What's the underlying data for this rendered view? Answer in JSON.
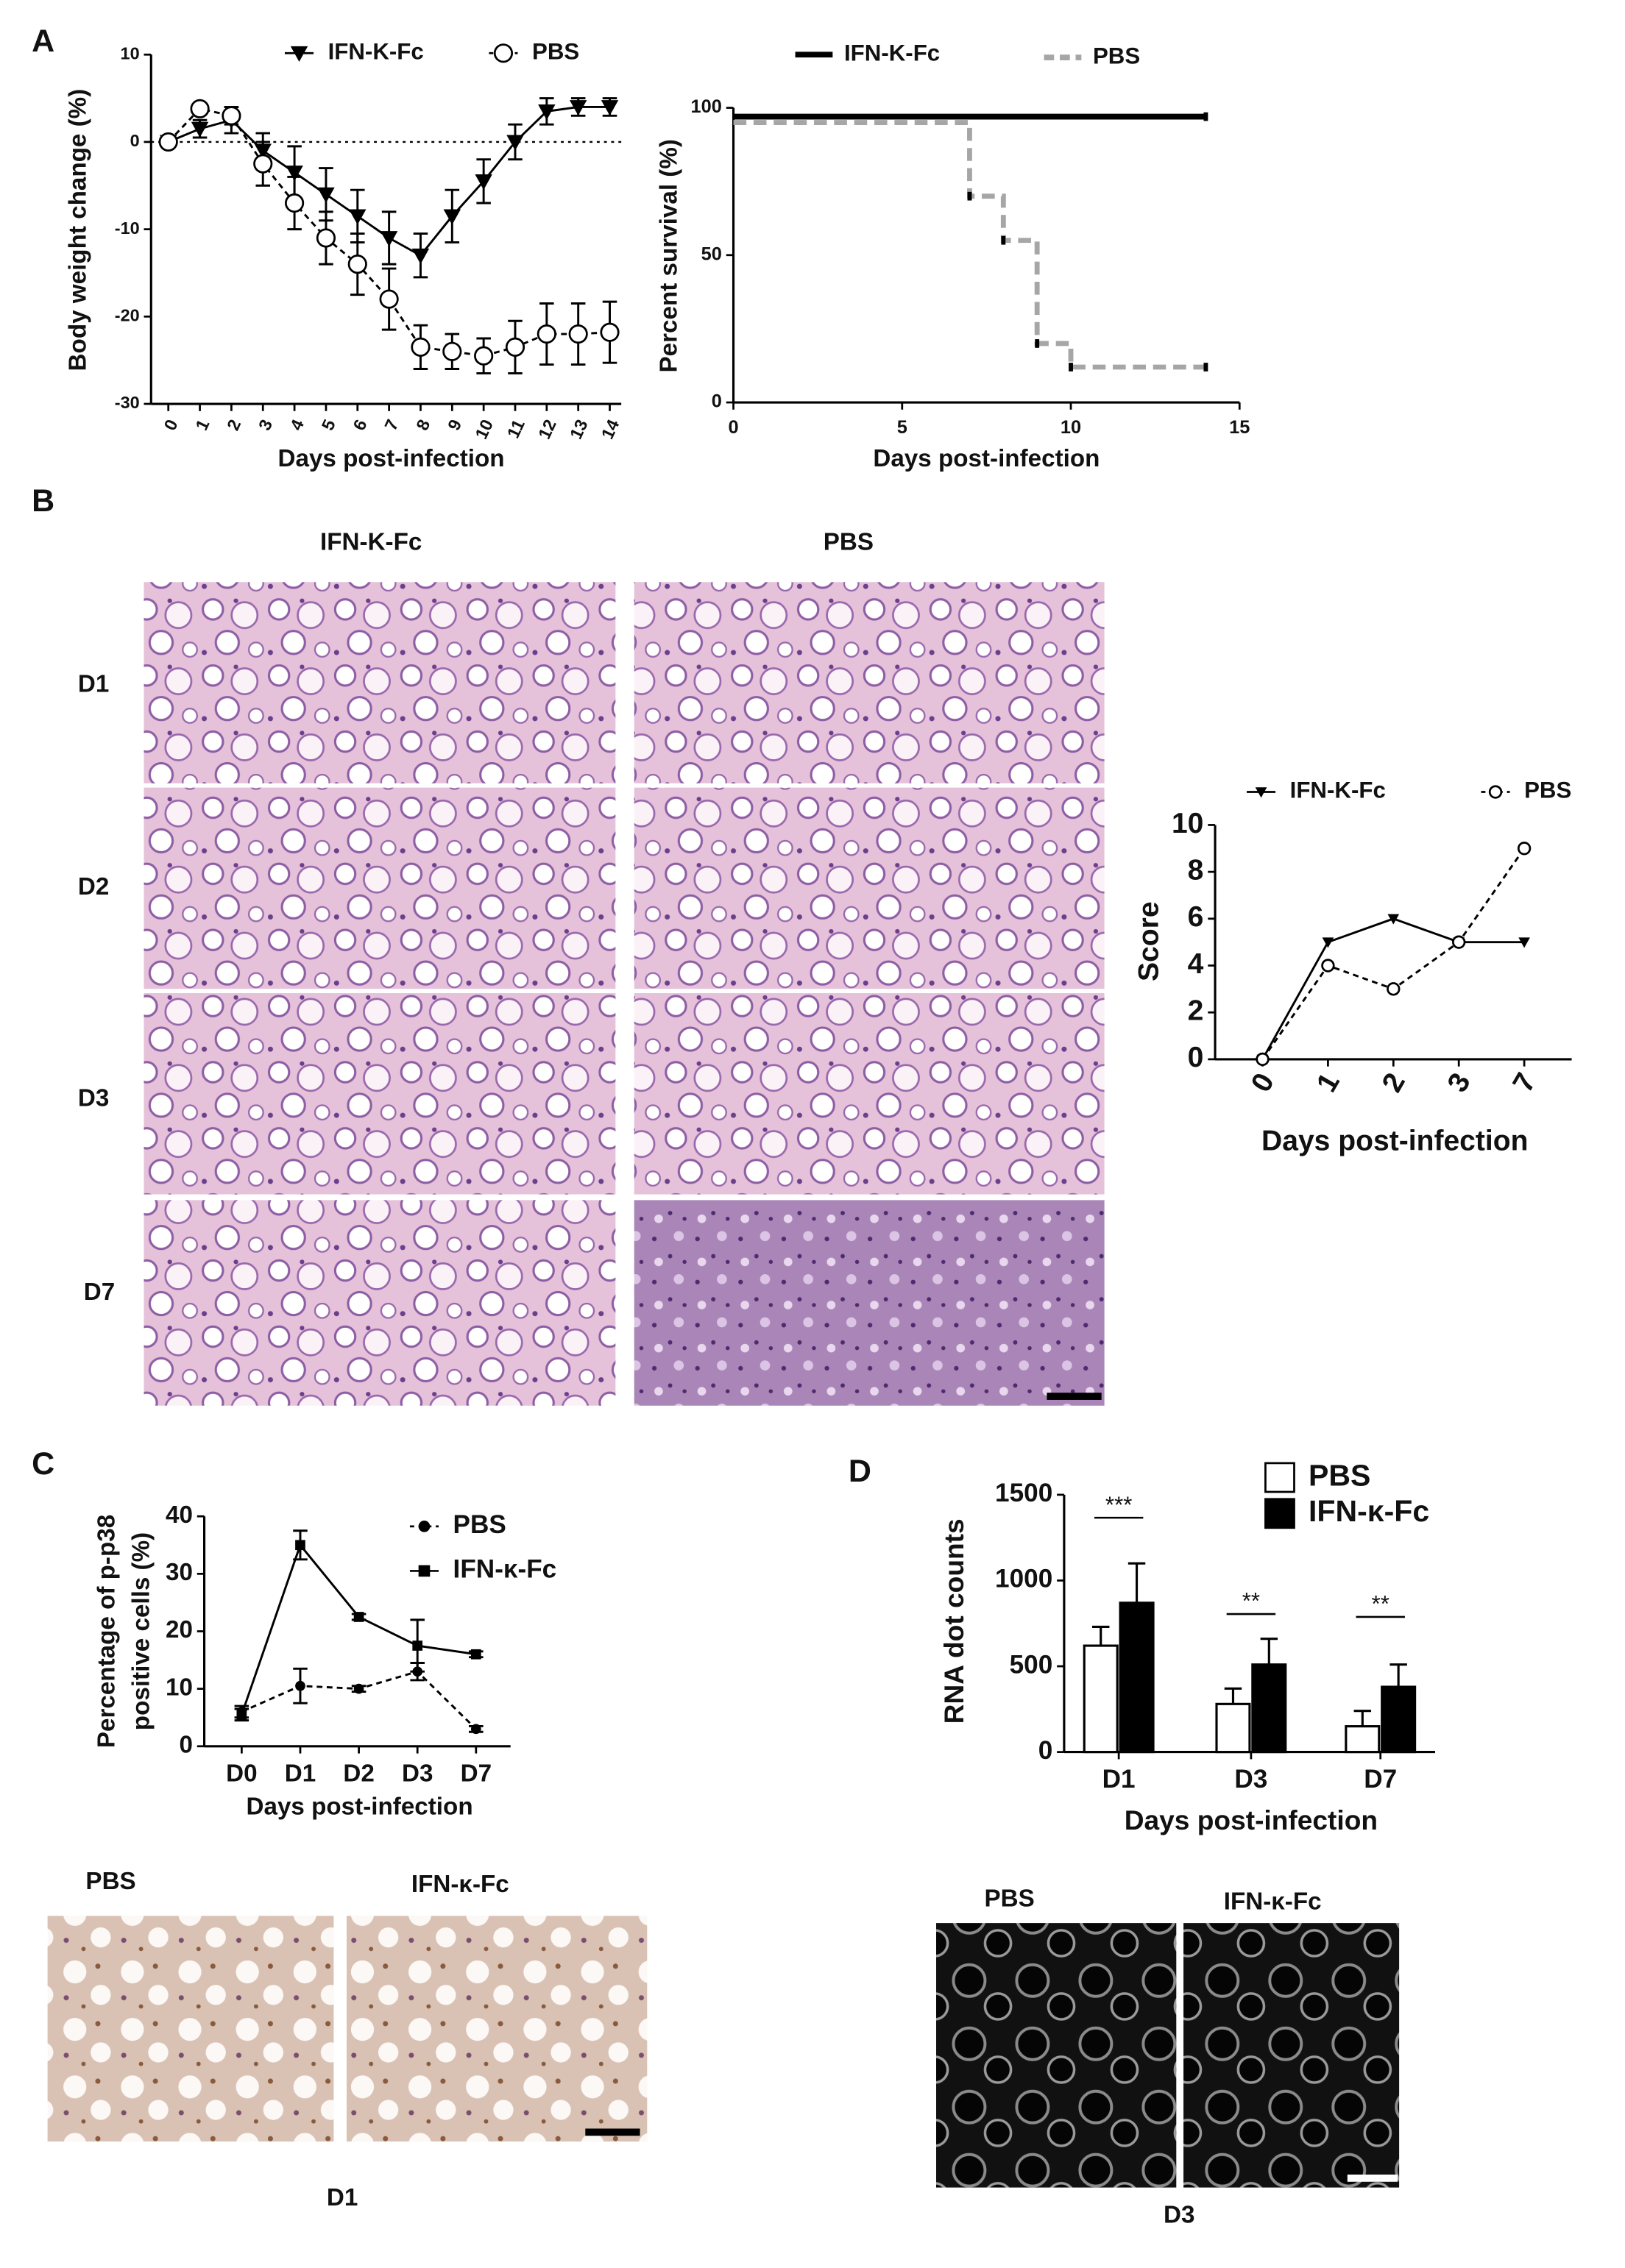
{
  "figure": {
    "panels": [
      "A",
      "B",
      "C",
      "D"
    ],
    "B_images": {
      "columns": [
        "IFN-Κ-Fc",
        "PBS"
      ],
      "rows": [
        "D1",
        "D2",
        "D3",
        "D7"
      ]
    },
    "C_images": {
      "columns": [
        "PBS",
        "IFN-κ-Fc"
      ],
      "caption": "D1"
    },
    "D_images": {
      "columns": [
        "PBS",
        "IFN-κ-Fc"
      ],
      "caption": "D3"
    }
  },
  "chart_data": [
    {
      "type": "line",
      "categories": [
        "0",
        "1",
        "2",
        "3",
        "4",
        "5",
        "6",
        "7",
        "8",
        "9",
        "10",
        "11",
        "12",
        "13",
        "14"
      ],
      "series": [
        {
          "name": "IFN-Κ-Fc",
          "color": "#000000",
          "marker": "triangle-down",
          "values": [
            0,
            1.5,
            2.5,
            -1,
            -3.5,
            -6,
            -8.5,
            -11,
            -13,
            -8.5,
            -4.5,
            0,
            3.5,
            4,
            4
          ],
          "errors": [
            0.5,
            1,
            1.5,
            2,
            3,
            3,
            3,
            3,
            2.5,
            3,
            2.5,
            2,
            1.5,
            1,
            1
          ]
        },
        {
          "name": "PBS",
          "color": "#000000",
          "marker": "circle-open",
          "dashed": true,
          "values": [
            0,
            3.8,
            3,
            -2.5,
            -7,
            -11,
            -14,
            -18,
            -23.5,
            -24,
            -24.5,
            -23.5,
            -22,
            -22,
            -21.8
          ],
          "errors": [
            0.5,
            0.5,
            1,
            2.5,
            3,
            3,
            3.5,
            3.5,
            2.5,
            2,
            2,
            3,
            3.5,
            3.5,
            3.5
          ]
        }
      ],
      "ylim": [
        -30,
        10
      ],
      "yticks": [
        -30,
        -20,
        -10,
        0,
        10
      ],
      "reference_line": 0,
      "xlabel": "Days post-infection",
      "ylabel": "Body weight change (%)"
    },
    {
      "type": "step",
      "series": [
        {
          "name": "IFN-Κ-Fc",
          "color": "#000000",
          "x": [
            0,
            14
          ],
          "values": [
            97,
            97
          ]
        },
        {
          "name": "PBS",
          "color": "#a6a6a6",
          "dashed": true,
          "x": [
            0,
            7,
            8,
            9,
            10,
            14
          ],
          "values": [
            95,
            70,
            55,
            20,
            12,
            12
          ]
        }
      ],
      "xlim": [
        0,
        15
      ],
      "xticks": [
        0,
        5,
        10,
        15
      ],
      "ylim": [
        0,
        100
      ],
      "yticks": [
        0,
        50,
        100
      ],
      "xlabel": "Days post-infection",
      "ylabel": "Percent survival (%)"
    },
    {
      "type": "line",
      "categories": [
        "0",
        "1",
        "2",
        "3",
        "7"
      ],
      "series": [
        {
          "name": "IFN-Κ-Fc",
          "color": "#000000",
          "marker": "triangle-down",
          "values": [
            0,
            5,
            6,
            5,
            5
          ]
        },
        {
          "name": "PBS",
          "color": "#000000",
          "marker": "circle-open",
          "dashed": true,
          "values": [
            0,
            4,
            3,
            5,
            9
          ]
        }
      ],
      "ylim": [
        0,
        10
      ],
      "yticks": [
        0,
        2,
        4,
        6,
        8,
        10
      ],
      "xlabel": "Days post-infection",
      "ylabel": "Score"
    },
    {
      "type": "line",
      "categories": [
        "D0",
        "D1",
        "D2",
        "D3",
        "D7"
      ],
      "series": [
        {
          "name": "PBS",
          "color": "#000000",
          "marker": "circle",
          "dashed": true,
          "values": [
            6,
            10.5,
            10,
            13,
            3
          ],
          "errors": [
            1,
            3,
            0.5,
            1.5,
            0.5
          ]
        },
        {
          "name": "IFN-κ-Fc",
          "color": "#000000",
          "marker": "square",
          "values": [
            5.5,
            35,
            22.5,
            17.5,
            16
          ],
          "errors": [
            1,
            2.5,
            0.5,
            4.5,
            0.5
          ]
        }
      ],
      "ylim": [
        0,
        40
      ],
      "yticks": [
        0,
        10,
        20,
        30,
        40
      ],
      "xlabel": "Days post-infection",
      "ylabel": [
        "Percentage of p-p38",
        "positive cells (%)"
      ]
    },
    {
      "type": "bar",
      "categories": [
        "D1",
        "D3",
        "D7"
      ],
      "series": [
        {
          "name": "PBS",
          "color": "#ffffff",
          "values": [
            620,
            280,
            150
          ],
          "errors": [
            110,
            90,
            90
          ]
        },
        {
          "name": "IFN-κ-Fc",
          "color": "#000000",
          "values": [
            870,
            510,
            380
          ],
          "errors": [
            230,
            150,
            130
          ]
        }
      ],
      "significance": [
        "***",
        "**",
        "**"
      ],
      "ylim": [
        0,
        1500
      ],
      "yticks": [
        0,
        500,
        1000,
        1500
      ],
      "xlabel": "Days post-infection",
      "ylabel": "RNA dot counts"
    }
  ]
}
